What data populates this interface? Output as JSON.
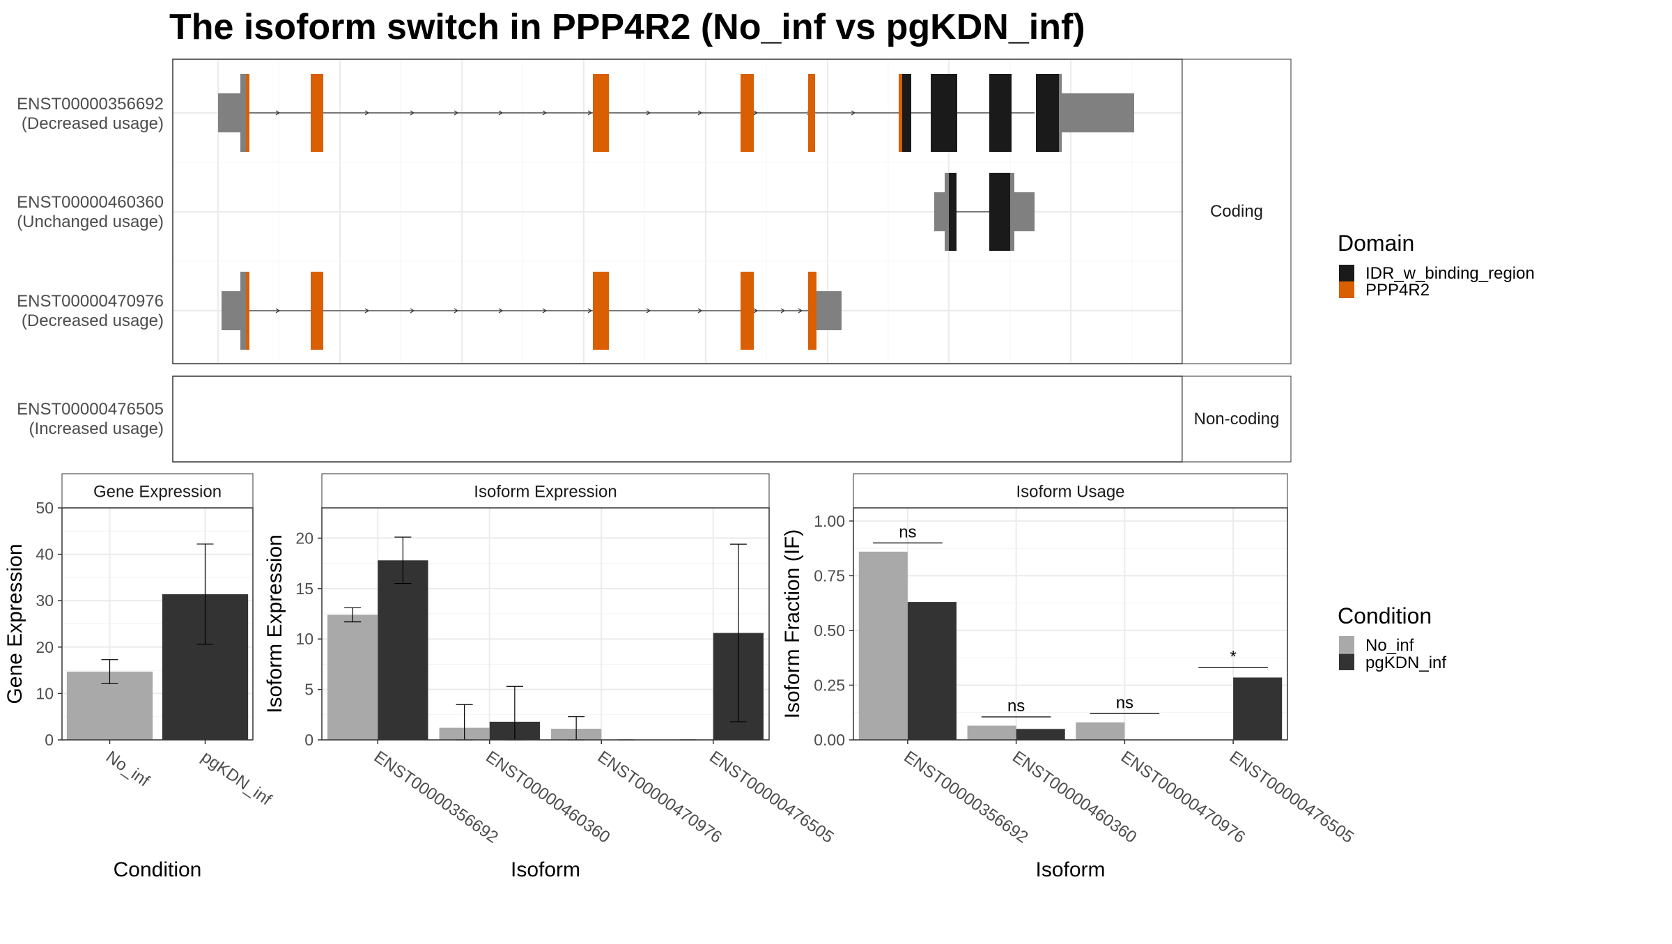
{
  "title": "The isoform switch in PPP4R2 (No_inf vs pgKDN_inf)",
  "colors": {
    "idr": "#1a1a1a",
    "ppp4r2": "#d95f02",
    "utr": "#808080",
    "no_inf": "#a9a9a9",
    "pgkdn_inf": "#333333",
    "grid": "#ebebeb",
    "strip_fill": "#ffffff",
    "border": "#333333"
  },
  "structure_panel": {
    "coding_label": "Coding",
    "noncoding_label": "Non-coding",
    "isoforms": [
      {
        "id": "ENST00000356692",
        "status": "(Decreased usage)"
      },
      {
        "id": "ENST00000460360",
        "status": "(Unchanged usage)"
      },
      {
        "id": "ENST00000470976",
        "status": "(Decreased usage)"
      },
      {
        "id": "ENST00000476505",
        "status": "(Increased usage)"
      }
    ]
  },
  "legend_domain": {
    "title": "Domain",
    "items": [
      {
        "label": "IDR_w_binding_region",
        "color": "#1a1a1a"
      },
      {
        "label": "PPP4R2",
        "color": "#d95f02"
      }
    ]
  },
  "legend_condition": {
    "title": "Condition",
    "items": [
      {
        "label": "No_inf",
        "color": "#a9a9a9"
      },
      {
        "label": "pgKDN_inf",
        "color": "#333333"
      }
    ]
  },
  "chart_data": [
    {
      "type": "bar",
      "title": "Gene Expression",
      "xlabel": "Condition",
      "ylabel": "Gene Expression",
      "ylim": [
        0,
        50
      ],
      "yticks": [
        0,
        10,
        20,
        30,
        40,
        50
      ],
      "ytick_labels": [
        "0",
        "10",
        "20",
        "30",
        "40",
        "50"
      ],
      "categories": [
        "No_inf",
        "pgKDN_inf"
      ],
      "values": [
        14.7,
        31.4
      ],
      "errors": [
        [
          12.1,
          17.3
        ],
        [
          20.6,
          42.2
        ]
      ],
      "grid": true
    },
    {
      "type": "bar",
      "title": "Isoform Expression",
      "xlabel": "Isoform",
      "ylabel": "Isoform Expression",
      "ylim": [
        0,
        23
      ],
      "yticks": [
        0,
        5,
        10,
        15,
        20
      ],
      "ytick_labels": [
        "0",
        "5",
        "10",
        "15",
        "20"
      ],
      "categories": [
        "ENST00000356692",
        "ENST00000460360",
        "ENST00000470976",
        "ENST00000476505"
      ],
      "series": [
        {
          "name": "No_inf",
          "values": [
            12.4,
            1.2,
            1.1,
            0.0
          ],
          "errors": [
            [
              11.7,
              13.1
            ],
            [
              0.0,
              3.5
            ],
            [
              0.0,
              2.3
            ],
            [
              0.0,
              0.0
            ]
          ]
        },
        {
          "name": "pgKDN_inf",
          "values": [
            17.8,
            1.8,
            0.0,
            10.6
          ],
          "errors": [
            [
              15.5,
              20.1
            ],
            [
              0.0,
              5.3
            ],
            [
              0.0,
              0.0
            ],
            [
              1.8,
              19.4
            ]
          ]
        }
      ],
      "grid": true
    },
    {
      "type": "bar",
      "title": "Isoform Usage",
      "xlabel": "Isoform",
      "ylabel": "Isoform Fraction (IF)",
      "ylim": [
        0,
        1.06
      ],
      "yticks": [
        0,
        0.25,
        0.5,
        0.75,
        1.0
      ],
      "ytick_labels": [
        "0.00",
        "0.25",
        "0.50",
        "0.75",
        "1.00"
      ],
      "categories": [
        "ENST00000356692",
        "ENST00000460360",
        "ENST00000470976",
        "ENST00000476505"
      ],
      "series": [
        {
          "name": "No_inf",
          "values": [
            0.86,
            0.065,
            0.08,
            0.0
          ]
        },
        {
          "name": "pgKDN_inf",
          "values": [
            0.63,
            0.05,
            0.0,
            0.285
          ]
        }
      ],
      "significance": [
        "ns",
        "ns",
        "ns",
        "*"
      ],
      "sig_y": [
        0.9,
        0.105,
        0.12,
        0.33
      ],
      "grid": true
    }
  ]
}
